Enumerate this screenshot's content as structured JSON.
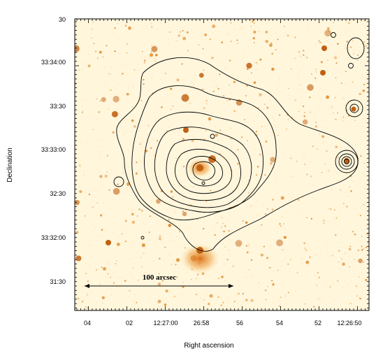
{
  "figure": {
    "xlabel": "Right ascension",
    "ylabel": "Declination",
    "x_ticks": [
      "04",
      "02",
      "12:27:00",
      "26:58",
      "56",
      "54",
      "52",
      "12:26:50"
    ],
    "y_ticks": [
      "30",
      "33:34:00",
      "33:30",
      "33:33:00",
      "32:30",
      "33:32:00",
      "31:30"
    ],
    "scale_bar_label": "100 arcsec",
    "colors": {
      "background": "#fff8e0",
      "sources": "#e08a2a",
      "source_core": "#c06010",
      "contour": "#000000"
    }
  }
}
